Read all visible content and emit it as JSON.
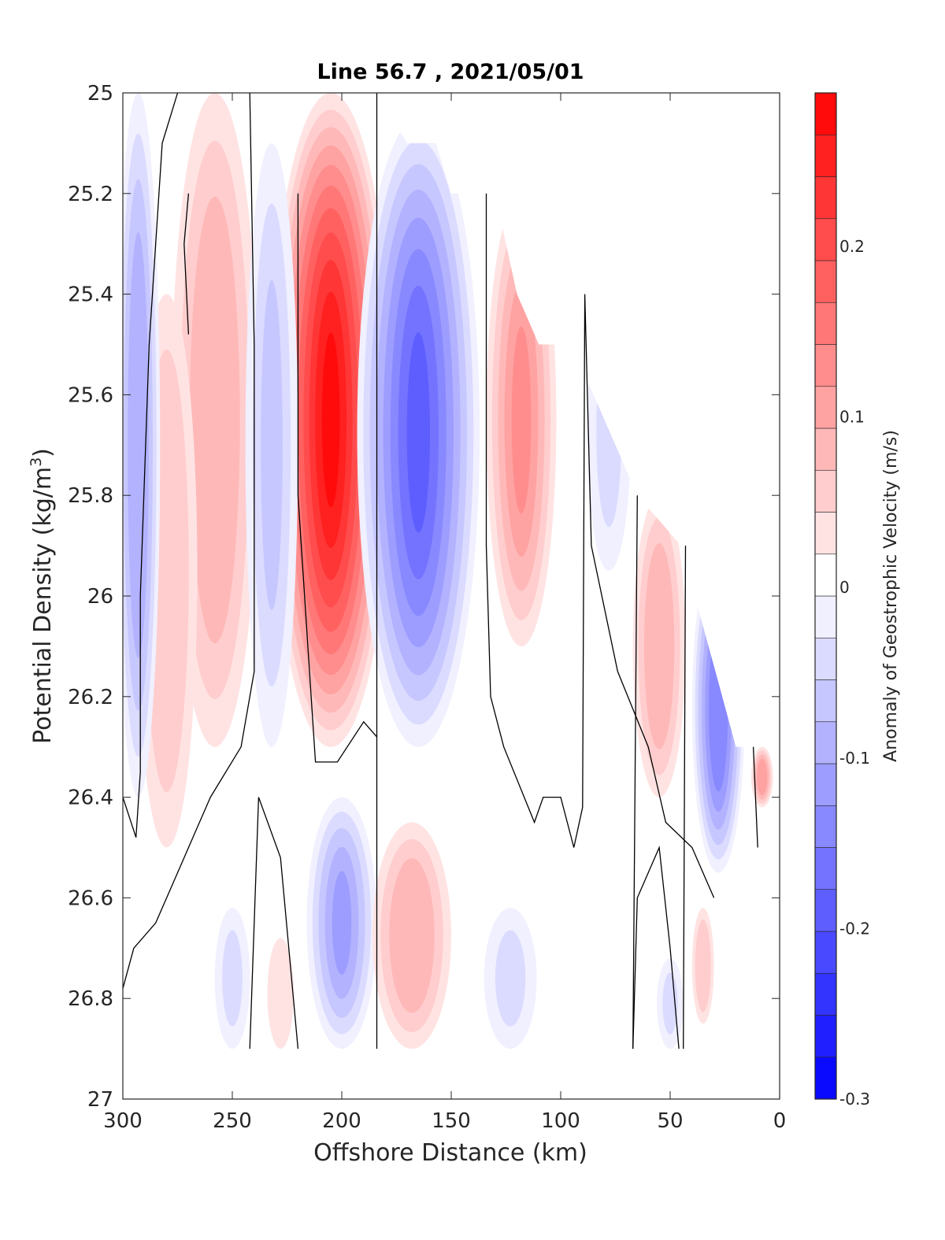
{
  "chart_data": {
    "type": "filled-contour",
    "title": "Line 56.7 , 2021/05/01",
    "xlabel": "Offshore Distance (km)",
    "ylabel_main": "Potential Density (kg/m",
    "ylabel_sup": "3",
    "ylabel_close": ")",
    "xlim": [
      300,
      0
    ],
    "x_reversed": true,
    "ylim": [
      25,
      27
    ],
    "y_reversed": true,
    "xticks": [
      "300",
      "250",
      "200",
      "150",
      "100",
      "50",
      "0"
    ],
    "yticks": [
      "25",
      "25.2",
      "25.4",
      "25.6",
      "25.8",
      "26",
      "26.2",
      "26.4",
      "26.6",
      "26.8",
      "27"
    ],
    "colorbar": {
      "label": "Anomaly of Geostrophic Velocity (m/s)",
      "range": [
        -0.3,
        0.29
      ],
      "ticks": [
        "-0.3",
        "-0.2",
        "-0.1",
        "0",
        "0.1",
        "0.2"
      ],
      "colormap": "blue-white-red",
      "low_color": "#0000ff",
      "high_color": "#ff0000"
    },
    "zero_contour_color": "#000000",
    "blobs": [
      {
        "x": 205,
        "y1": 25.0,
        "y2": 26.3,
        "w": 28,
        "v": 0.27
      },
      {
        "x": 165,
        "y1": 25.05,
        "y2": 26.3,
        "w": 28,
        "v": -0.19
      },
      {
        "x": 258,
        "y1": 25.0,
        "y2": 26.3,
        "w": 20,
        "v": 0.09
      },
      {
        "x": 280,
        "y1": 25.4,
        "y2": 26.5,
        "w": 14,
        "v": 0.06
      },
      {
        "x": 232,
        "y1": 25.1,
        "y2": 26.3,
        "w": 12,
        "v": -0.07
      },
      {
        "x": 293,
        "y1": 25.0,
        "y2": 26.4,
        "w": 10,
        "v": -0.1
      },
      {
        "x": 118,
        "y1": 25.2,
        "y2": 26.1,
        "w": 16,
        "v": 0.12
      },
      {
        "x": 78,
        "y1": 25.4,
        "y2": 25.95,
        "w": 10,
        "v": -0.04
      },
      {
        "x": 55,
        "y1": 25.8,
        "y2": 26.4,
        "w": 12,
        "v": 0.09
      },
      {
        "x": 28,
        "y1": 25.9,
        "y2": 26.55,
        "w": 12,
        "v": -0.15
      },
      {
        "x": 8,
        "y1": 26.3,
        "y2": 26.42,
        "w": 5,
        "v": 0.1
      },
      {
        "x": 200,
        "y1": 26.4,
        "y2": 26.9,
        "w": 16,
        "v": -0.11
      },
      {
        "x": 168,
        "y1": 26.45,
        "y2": 26.9,
        "w": 18,
        "v": 0.09
      },
      {
        "x": 250,
        "y1": 26.62,
        "y2": 26.9,
        "w": 8,
        "v": -0.04
      },
      {
        "x": 228,
        "y1": 26.68,
        "y2": 26.9,
        "w": 6,
        "v": 0.04
      },
      {
        "x": 123,
        "y1": 26.62,
        "y2": 26.9,
        "w": 12,
        "v": -0.03
      },
      {
        "x": 50,
        "y1": 26.72,
        "y2": 26.9,
        "w": 6,
        "v": -0.03
      },
      {
        "x": 35,
        "y1": 26.62,
        "y2": 26.85,
        "w": 5,
        "v": 0.05
      }
    ],
    "zero_contours": [
      [
        [
          275,
          25.0
        ],
        [
          282,
          25.1
        ],
        [
          288,
          25.5
        ],
        [
          292,
          26.0
        ],
        [
          292,
          26.35
        ],
        [
          294,
          26.48
        ],
        [
          300,
          26.4
        ]
      ],
      [
        [
          270,
          25.2
        ],
        [
          272,
          25.3
        ],
        [
          270,
          25.48
        ]
      ],
      [
        [
          242,
          25.0
        ],
        [
          240,
          25.5
        ],
        [
          240,
          26.15
        ],
        [
          246,
          26.3
        ],
        [
          260,
          26.4
        ],
        [
          275,
          26.55
        ],
        [
          285,
          26.65
        ],
        [
          295,
          26.7
        ],
        [
          300,
          26.78
        ]
      ],
      [
        [
          220,
          25.2
        ],
        [
          220,
          25.8
        ],
        [
          214,
          26.2
        ],
        [
          212,
          26.33
        ],
        [
          202,
          26.33
        ],
        [
          190,
          26.25
        ],
        [
          184,
          26.28
        ]
      ],
      [
        [
          184,
          25.0
        ],
        [
          184,
          26.9
        ]
      ],
      [
        [
          134,
          25.2
        ],
        [
          134,
          25.9
        ],
        [
          132,
          26.2
        ],
        [
          126,
          26.3
        ],
        [
          112,
          26.45
        ],
        [
          108,
          26.4
        ],
        [
          100,
          26.4
        ],
        [
          94,
          26.5
        ],
        [
          90,
          26.42
        ],
        [
          89,
          25.4
        ],
        [
          86,
          25.9
        ],
        [
          74,
          26.15
        ],
        [
          60,
          26.3
        ],
        [
          52,
          26.45
        ],
        [
          40,
          26.5
        ],
        [
          30,
          26.6
        ]
      ],
      [
        [
          65,
          25.8
        ],
        [
          67,
          26.9
        ]
      ],
      [
        [
          43,
          25.9
        ],
        [
          44,
          26.9
        ]
      ],
      [
        [
          12,
          26.3
        ],
        [
          10,
          26.5
        ]
      ],
      [
        [
          242,
          26.9
        ],
        [
          238,
          26.4
        ],
        [
          228,
          26.52
        ],
        [
          220,
          26.9
        ]
      ],
      [
        [
          67,
          26.9
        ],
        [
          65,
          26.6
        ],
        [
          55,
          26.5
        ],
        [
          50,
          26.7
        ],
        [
          46,
          26.9
        ]
      ]
    ]
  }
}
